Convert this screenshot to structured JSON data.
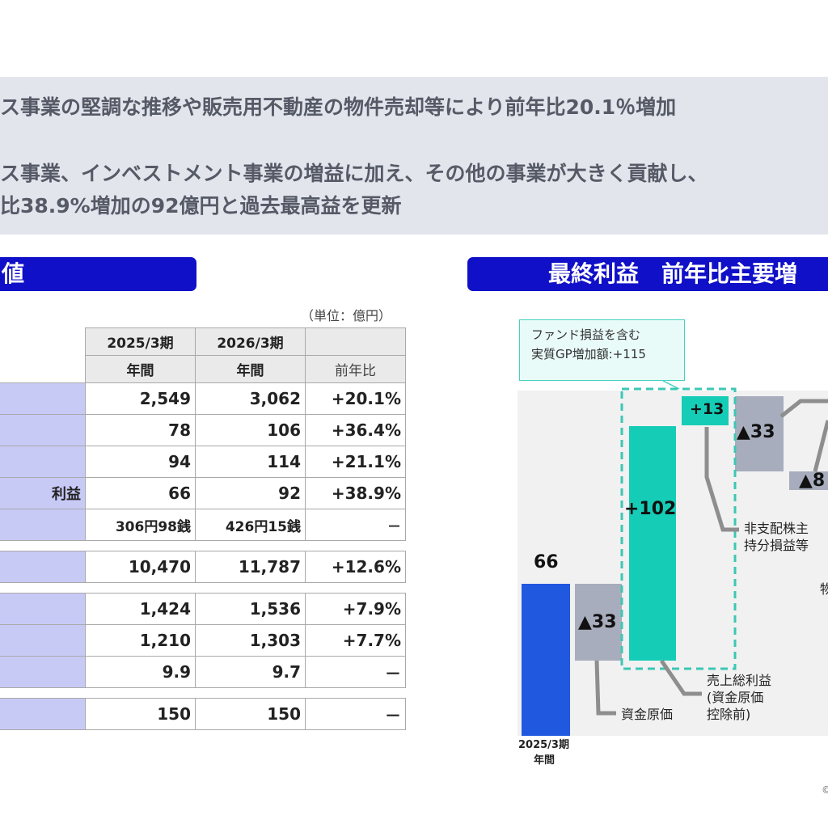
{
  "summary": {
    "line1": "ス事業の堅調な推移や販売用不動産の物件売却等により前年比20.1％増加",
    "line2": "ス事業、インベストメント事業の増益に加え、その他の事業が大きく貢献し、",
    "line3": "比38.9%増加の92億円と過去最高益を更新"
  },
  "left_header": "値",
  "right_header": "最終利益　前年比主要増",
  "unit": "（単位：億円）",
  "table": {
    "col1_top": "2025/3期",
    "col1_bottom": "年間",
    "col2_top": "2026/3期",
    "col2_bottom": "年間",
    "col3": "前年比",
    "rows": [
      {
        "label": "",
        "a": "2,549",
        "b": "3,062",
        "yoy": "+20.1%"
      },
      {
        "label": "",
        "a": "78",
        "b": "106",
        "yoy": "+36.4%"
      },
      {
        "label": "",
        "a": "94",
        "b": "114",
        "yoy": "+21.1%"
      },
      {
        "label": "利益",
        "a": "66",
        "b": "92",
        "yoy": "+38.9%"
      },
      {
        "label": "",
        "a": "306円98銭",
        "b": "426円15銭",
        "yoy": "－"
      },
      {
        "label": "",
        "a": "10,470",
        "b": "11,787",
        "yoy": "+12.6%"
      },
      {
        "label": "",
        "a": "1,424",
        "b": "1,536",
        "yoy": "+7.9%"
      },
      {
        "label": "",
        "a": "1,210",
        "b": "1,303",
        "yoy": "+7.7%"
      },
      {
        "label": "",
        "a": "9.9",
        "b": "9.7",
        "yoy": "－"
      },
      {
        "label": "",
        "a": "150",
        "b": "150",
        "yoy": "－"
      }
    ]
  },
  "chart": {
    "callout_line1": "ファンド損益を含む",
    "callout_line2": "実質GP増加額:+115",
    "bars": [
      {
        "label": "66",
        "color": "#2158e0"
      },
      {
        "label": "▲33",
        "color": "#a8adbd"
      },
      {
        "label": "+102",
        "color": "#15cdb6"
      },
      {
        "label": "+13",
        "color": "#15cdb6"
      },
      {
        "label": "▲33",
        "color": "#a8adbd"
      },
      {
        "label": "▲8",
        "color": "#a8adbd"
      }
    ],
    "ann_cost": "資金原価",
    "ann_gp_1": "売上総利益",
    "ann_gp_2": "(資金原価",
    "ann_gp_3": "控除前)",
    "ann_nci_1": "非支配株主",
    "ann_nci_2": "持分損益等",
    "ann_cut": "物",
    "x_top": "2025/3期",
    "x_bottom": "年間"
  },
  "copyright": "©"
}
